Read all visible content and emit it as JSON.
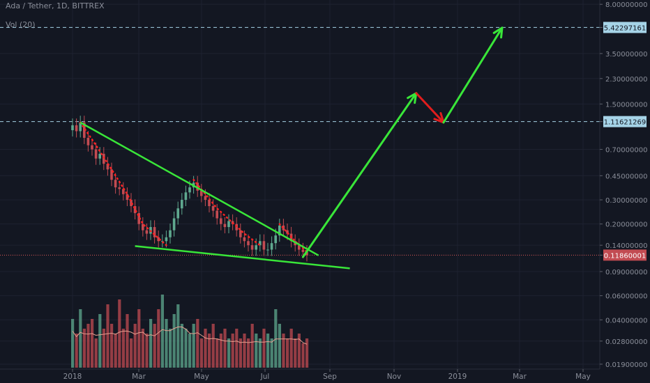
{
  "header": {
    "symbol": "Ada / Tether, 1D, BITTREX",
    "volume_label": "Vol (20)"
  },
  "colors": {
    "background": "#131722",
    "up": "#5fa98f",
    "down": "#c24b52",
    "trendline": "#39e639",
    "forecast_up": "#39e639",
    "forecast_down": "#e11d1d",
    "price_line": "#e05a5a",
    "dotted_trend": "#ff2222",
    "volume_ma": "#e8a090",
    "dashed_level": "#a6d4e8"
  },
  "chart_data": {
    "type": "candlestick",
    "y_scale": "log",
    "y_ticks": [
      "8.00000000",
      "5.42297161",
      "3.50000000",
      "2.30000000",
      "1.50000000",
      "1.11621269",
      "0.70000000",
      "0.45000000",
      "0.30000000",
      "0.20000000",
      "0.14000000",
      "0.11860001",
      "0.09000000",
      "0.06000000",
      "0.04000000",
      "0.02800000",
      "0.01900000"
    ],
    "x_ticks": [
      "2018",
      "Mar",
      "May",
      "Jul",
      "Sep",
      "Nov",
      "2019",
      "Mar",
      "May"
    ],
    "current_price": "0.11860001",
    "marked_levels": [
      "5.42297161",
      "1.11621269"
    ],
    "price_path": [
      [
        0,
        1.05
      ],
      [
        1,
        0.95
      ],
      [
        2,
        1.1
      ],
      [
        3,
        0.85
      ],
      [
        4,
        0.75
      ],
      [
        5,
        0.7
      ],
      [
        6,
        0.6
      ],
      [
        7,
        0.65
      ],
      [
        8,
        0.55
      ],
      [
        9,
        0.5
      ],
      [
        10,
        0.42
      ],
      [
        11,
        0.37
      ],
      [
        12,
        0.36
      ],
      [
        13,
        0.33
      ],
      [
        14,
        0.3
      ],
      [
        15,
        0.27
      ],
      [
        16,
        0.24
      ],
      [
        17,
        0.2
      ],
      [
        18,
        0.18
      ],
      [
        19,
        0.17
      ],
      [
        20,
        0.19
      ],
      [
        21,
        0.16
      ],
      [
        22,
        0.15
      ],
      [
        23,
        0.15
      ],
      [
        24,
        0.16
      ],
      [
        25,
        0.18
      ],
      [
        26,
        0.22
      ],
      [
        27,
        0.26
      ],
      [
        28,
        0.3
      ],
      [
        29,
        0.34
      ],
      [
        30,
        0.37
      ],
      [
        31,
        0.4
      ],
      [
        32,
        0.35
      ],
      [
        33,
        0.32
      ],
      [
        34,
        0.3
      ],
      [
        35,
        0.27
      ],
      [
        36,
        0.25
      ],
      [
        37,
        0.22
      ],
      [
        38,
        0.2
      ],
      [
        39,
        0.19
      ],
      [
        40,
        0.21
      ],
      [
        41,
        0.2
      ],
      [
        42,
        0.18
      ],
      [
        43,
        0.16
      ],
      [
        44,
        0.15
      ],
      [
        45,
        0.14
      ],
      [
        46,
        0.13
      ],
      [
        47,
        0.14
      ],
      [
        48,
        0.15
      ],
      [
        49,
        0.13
      ],
      [
        50,
        0.13
      ],
      [
        51,
        0.145
      ],
      [
        52,
        0.165
      ],
      [
        53,
        0.195
      ],
      [
        54,
        0.18
      ],
      [
        55,
        0.17
      ],
      [
        56,
        0.15
      ],
      [
        57,
        0.14
      ],
      [
        58,
        0.13
      ],
      [
        59,
        0.125
      ],
      [
        60,
        0.1186
      ]
    ],
    "volume_path": [
      0.5,
      0.35,
      0.6,
      0.4,
      0.45,
      0.5,
      0.3,
      0.55,
      0.4,
      0.65,
      0.45,
      0.35,
      0.7,
      0.4,
      0.55,
      0.3,
      0.45,
      0.6,
      0.4,
      0.35,
      0.5,
      0.45,
      0.6,
      0.75,
      0.5,
      0.4,
      0.55,
      0.65,
      0.45,
      0.4,
      0.35,
      0.45,
      0.5,
      0.3,
      0.4,
      0.35,
      0.45,
      0.3,
      0.35,
      0.4,
      0.3,
      0.35,
      0.4,
      0.3,
      0.35,
      0.3,
      0.45,
      0.35,
      0.3,
      0.4,
      0.35,
      0.3,
      0.6,
      0.45,
      0.35,
      0.3,
      0.4,
      0.3,
      0.35,
      0.25,
      0.3
    ],
    "annotations": [
      {
        "type": "upper-trendline",
        "from_bar": 2,
        "from_price": 1.1,
        "to_bar": 63,
        "to_price": 0.118
      },
      {
        "type": "lower-trendline",
        "from_bar": 16,
        "from_price": 0.138,
        "to_bar": 71,
        "to_price": 0.095
      },
      {
        "type": "forecast-arrow-up",
        "label": "",
        "path": [
          [
            59,
            0.115
          ],
          [
            88,
            1.8
          ],
          [
            95,
            1.1
          ],
          [
            110,
            5.4
          ]
        ]
      }
    ]
  }
}
